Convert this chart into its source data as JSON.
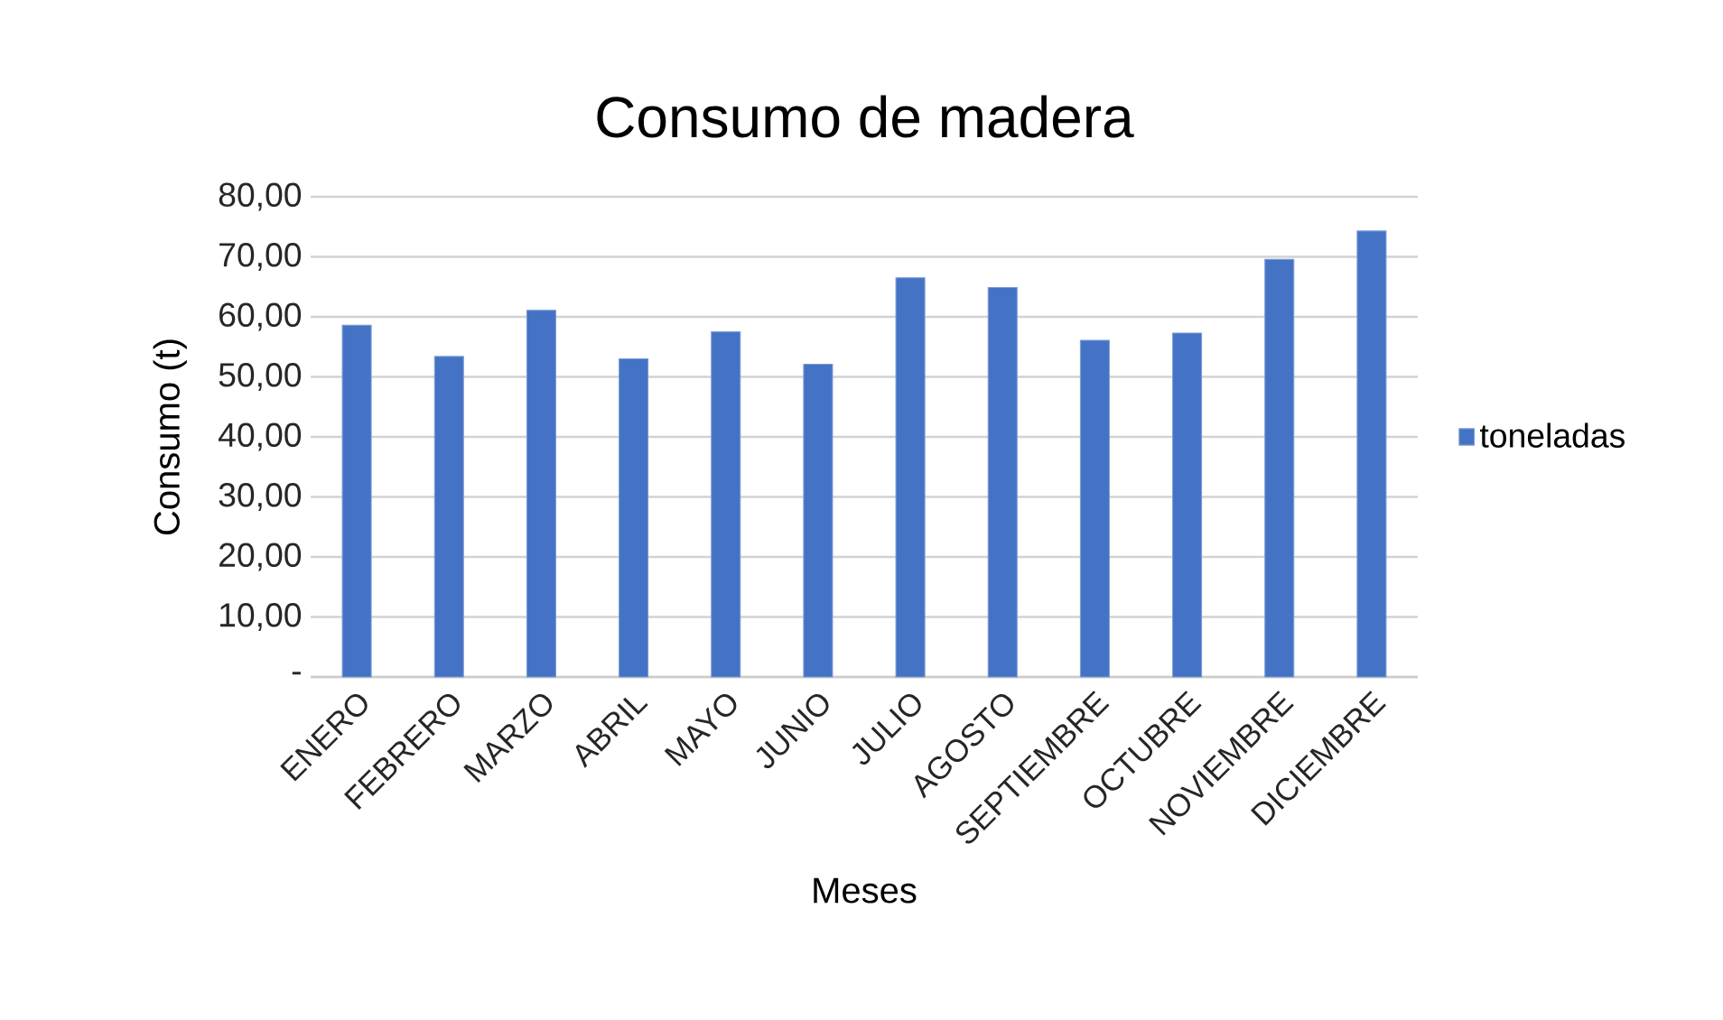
{
  "chart_data": {
    "type": "bar",
    "title": "Consumo de madera",
    "xlabel": "Meses",
    "ylabel": "Consumo (t)",
    "categories": [
      "ENERO",
      "FEBRERO",
      "MARZO",
      "ABRIL",
      "MAYO",
      "JUNIO",
      "JULIO",
      "AGOSTO",
      "SEPTIEMBRE",
      "OCTUBRE",
      "NOVIEMBRE",
      "DICIEMBRE"
    ],
    "series": [
      {
        "name": "toneladas",
        "color": "#4472c4",
        "values": [
          58.6,
          53.4,
          61.1,
          53.0,
          57.5,
          52.1,
          66.5,
          64.9,
          56.1,
          57.3,
          69.6,
          74.3
        ]
      }
    ],
    "ylim": [
      0,
      80
    ],
    "yticks": [
      {
        "value": 0,
        "label": "-"
      },
      {
        "value": 10,
        "label": "10,00"
      },
      {
        "value": 20,
        "label": "20,00"
      },
      {
        "value": 30,
        "label": "30,00"
      },
      {
        "value": 40,
        "label": "40,00"
      },
      {
        "value": 50,
        "label": "50,00"
      },
      {
        "value": 60,
        "label": "60,00"
      },
      {
        "value": 70,
        "label": "70,00"
      },
      {
        "value": 80,
        "label": "80,00"
      }
    ],
    "grid": "y",
    "legend": "right"
  }
}
